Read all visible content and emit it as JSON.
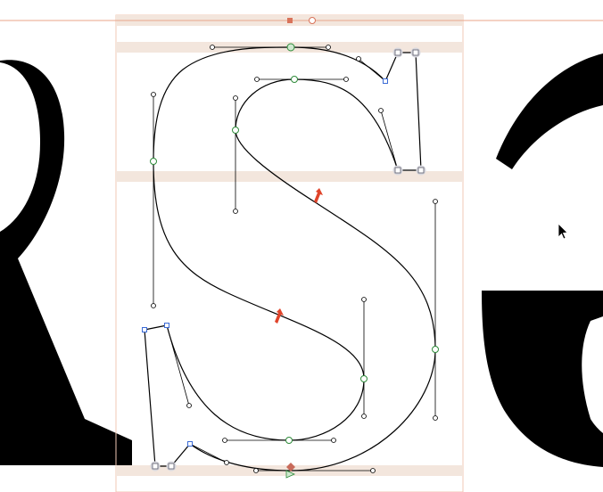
{
  "app": {
    "view": "glyph-editor",
    "current_glyph": "S",
    "neighbor_glyphs": [
      "R",
      "G"
    ]
  },
  "colors": {
    "background": "#ffffff",
    "glyph_fill": "#000000",
    "outline_stroke": "#000000",
    "metric_band": "#f3e6dd",
    "metric_line": "#f0c9b4",
    "guide_line": "#e8a68a",
    "handle_line": "#000000",
    "on_curve_smooth": "#2e8b3a",
    "on_curve_corner": "#9a9aa8",
    "on_curve_selected": "#3b6bd6",
    "off_curve": "#ffffff",
    "start_point": "#c86a5a",
    "arrow_marker": "#e0442a"
  },
  "icons": {
    "cursor": "arrow-cursor-icon",
    "direction": "red-direction-arrow-icon",
    "guide_handle": "guide-handle-icon",
    "start": "start-point-icon"
  }
}
